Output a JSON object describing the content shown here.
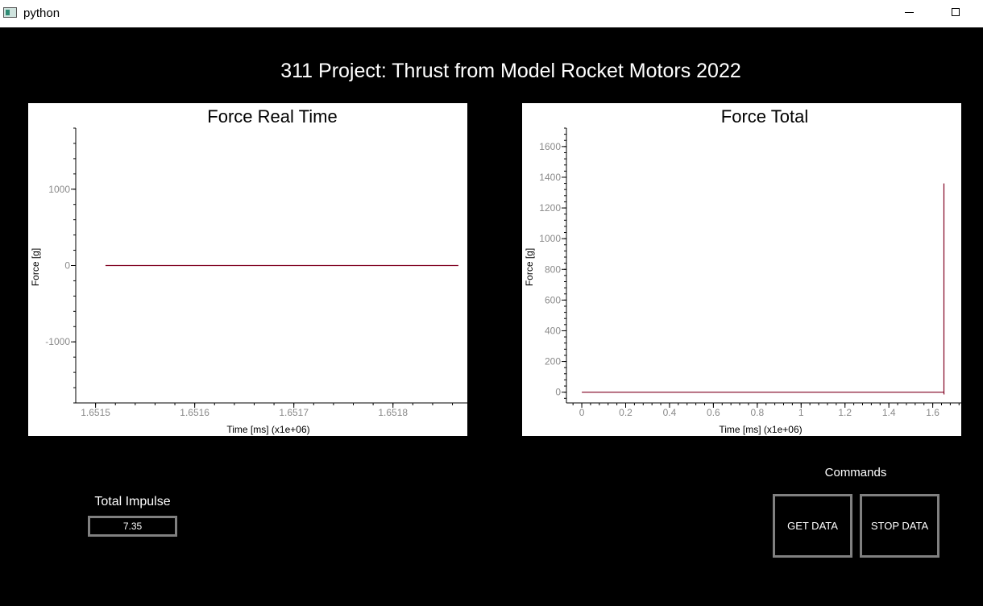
{
  "window": {
    "title": "python"
  },
  "header": {
    "title": "311 Project: Thrust from Model Rocket Motors 2022"
  },
  "impulse": {
    "label": "Total Impulse",
    "value": "7.35"
  },
  "commands": {
    "label": "Commands",
    "get_label": "GET DATA",
    "stop_label": "STOP DATA"
  },
  "chart_data": [
    {
      "type": "line",
      "title": "Force Real Time",
      "xlabel": "Time [ms] (x1e+06)",
      "ylabel": "Force [g]",
      "xlim": [
        1.65148,
        1.651875
      ],
      "ylim": [
        -1800,
        1800
      ],
      "xticks": [
        1.6515,
        1.6516,
        1.6517,
        1.6518
      ],
      "xtick_labels": [
        "1.6515",
        "1.6516",
        "1.6517",
        "1.6518"
      ],
      "yticks": [
        -1000,
        0,
        1000
      ],
      "ytick_labels": [
        "-1000",
        "0",
        "1000"
      ],
      "grid": false,
      "series": [
        {
          "color": "#800020",
          "x": [
            1.65151,
            1.651866
          ],
          "y": [
            0,
            0
          ]
        }
      ]
    },
    {
      "type": "line",
      "title": "Force Total",
      "xlabel": "Time [ms] (x1e+06)",
      "ylabel": "Force [g]",
      "xlim": [
        -0.07,
        1.73
      ],
      "ylim": [
        -70,
        1720
      ],
      "xticks": [
        0,
        0.2,
        0.4,
        0.6,
        0.8,
        1,
        1.2,
        1.4,
        1.6
      ],
      "xtick_labels": [
        "0",
        "0.2",
        "0.4",
        "0.6",
        "0.8",
        "1",
        "1.2",
        "1.4",
        "1.6"
      ],
      "yticks": [
        0,
        200,
        400,
        600,
        800,
        1000,
        1200,
        1400,
        1600
      ],
      "ytick_labels": [
        "0",
        "200",
        "400",
        "600",
        "800",
        "1000",
        "1200",
        "1400",
        "1600"
      ],
      "grid": false,
      "series": [
        {
          "color": "#800020",
          "x": [
            0,
            1.6,
            1.651,
            1.6512,
            1.6512,
            1.6515
          ],
          "y": [
            0,
            0,
            0,
            1360,
            0,
            -15
          ]
        }
      ]
    }
  ]
}
